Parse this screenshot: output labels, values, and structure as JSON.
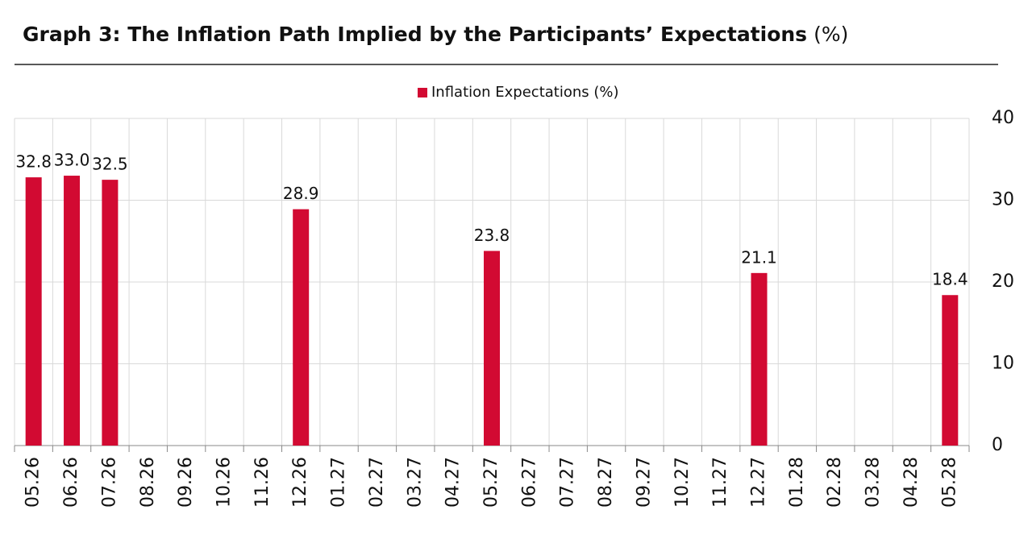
{
  "chart_data": {
    "type": "bar",
    "title": "Graph 3: The Inflation Path Implied by the Participants’ Expectations",
    "title_unit": "(%)",
    "categories": [
      "05.26",
      "06.26",
      "07.26",
      "08.26",
      "09.26",
      "10.26",
      "11.26",
      "12.26",
      "01.27",
      "02.27",
      "03.27",
      "04.27",
      "05.27",
      "06.27",
      "07.27",
      "08.27",
      "09.27",
      "10.27",
      "11.27",
      "12.27",
      "01.28",
      "02.28",
      "03.28",
      "04.28",
      "05.28"
    ],
    "series": [
      {
        "name": "Inflation Expectations (%)",
        "color": "#d20a32",
        "values": [
          32.8,
          33.0,
          32.5,
          null,
          null,
          null,
          null,
          28.9,
          null,
          null,
          null,
          null,
          23.8,
          null,
          null,
          null,
          null,
          null,
          null,
          21.1,
          null,
          null,
          null,
          null,
          18.4
        ],
        "value_labels": [
          "32.8",
          "33.0",
          "32.5",
          null,
          null,
          null,
          null,
          "28.9",
          null,
          null,
          null,
          null,
          "23.8",
          null,
          null,
          null,
          null,
          null,
          null,
          "21.1",
          null,
          null,
          null,
          null,
          "18.4"
        ]
      }
    ],
    "ylim": [
      0,
      40
    ],
    "yticks": [
      0,
      10,
      20,
      30,
      40
    ],
    "grid": true,
    "legend": "top"
  }
}
